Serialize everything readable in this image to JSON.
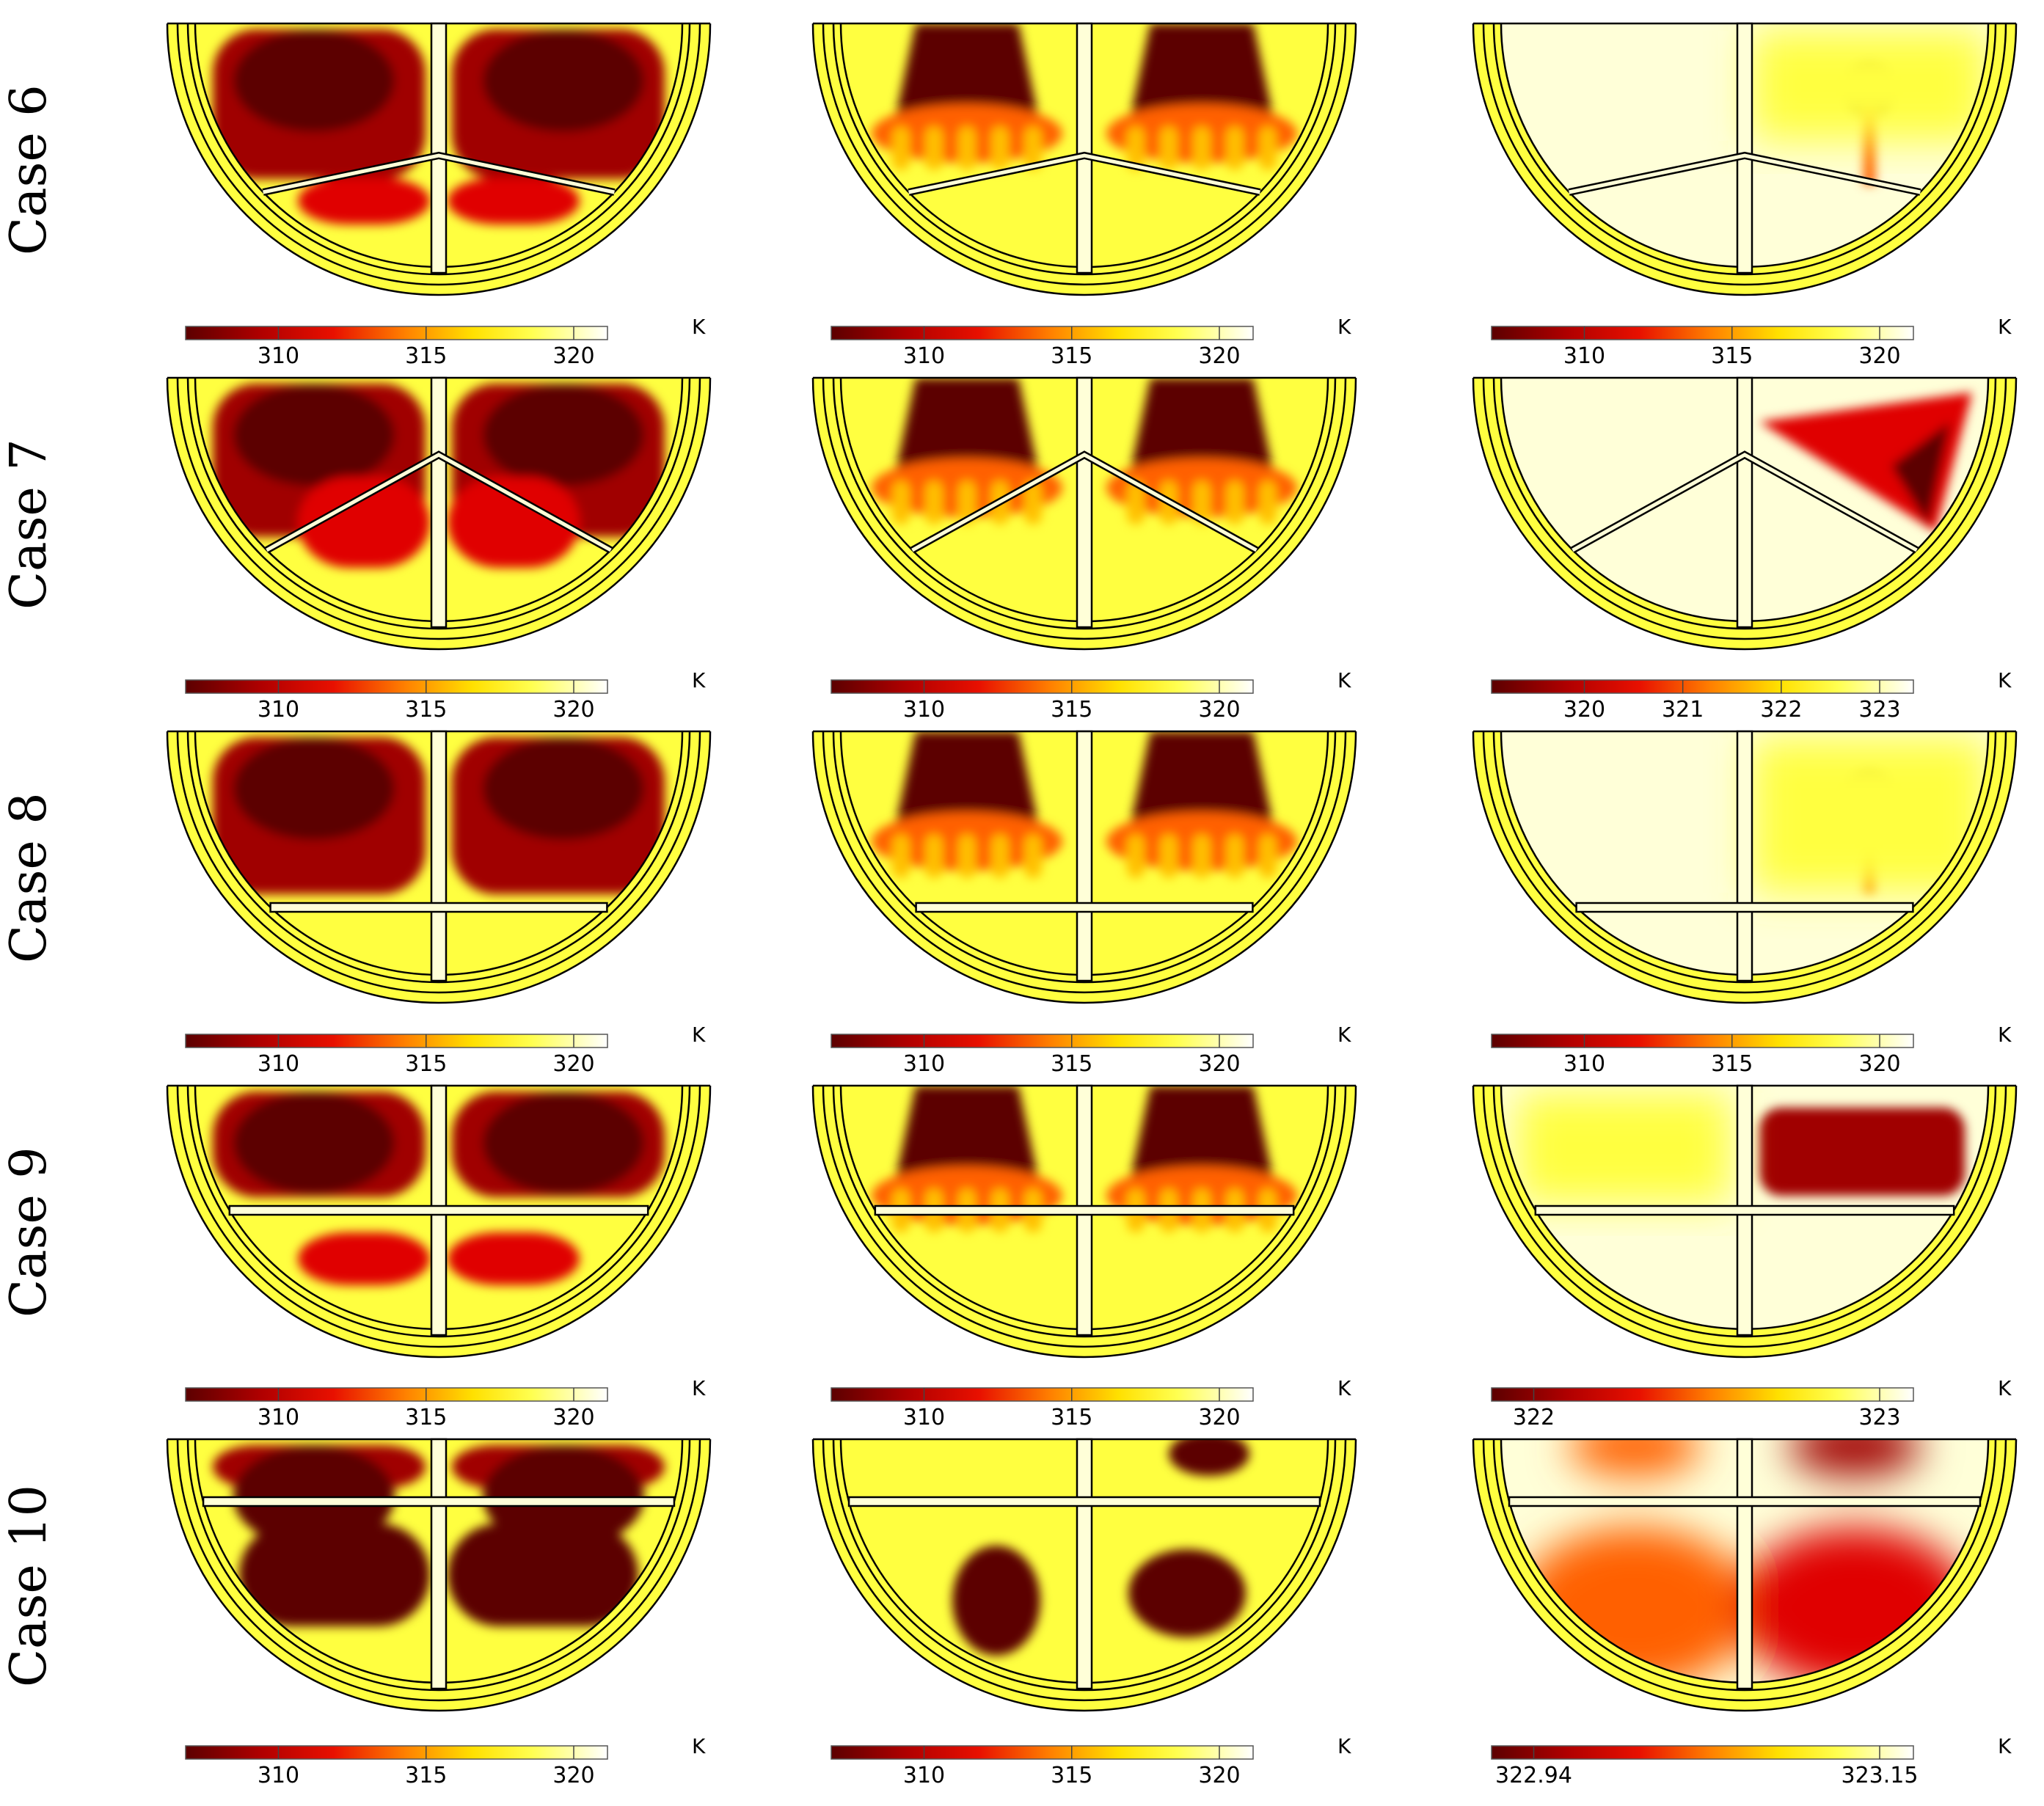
{
  "colormap": [
    "#5c0000",
    "#a00000",
    "#e00000",
    "#ff6000",
    "#ffc000",
    "#ffff40",
    "#ffffd8",
    "#ffffff"
  ],
  "unit": "K",
  "rows": [
    {
      "case_label": "Case 6",
      "layout": "narrow-top-divider",
      "panels": [
        {
          "pattern": "cold-full",
          "scale": {
            "ticks": [
              "310",
              "315",
              "320"
            ]
          }
        },
        {
          "pattern": "plume-pair",
          "scale": {
            "ticks": [
              "310",
              "315",
              "320"
            ]
          }
        },
        {
          "pattern": "single-plume",
          "scale": {
            "ticks": [
              "310",
              "315",
              "320"
            ]
          }
        }
      ]
    },
    {
      "case_label": "Case 7",
      "layout": "v-divider",
      "panels": [
        {
          "pattern": "cold-full",
          "scale": {
            "ticks": [
              "310",
              "315",
              "320"
            ]
          }
        },
        {
          "pattern": "plume-pair",
          "scale": {
            "ticks": [
              "310",
              "315",
              "320"
            ]
          }
        },
        {
          "pattern": "right-wedge",
          "scale": {
            "ticks": [
              "320",
              "321",
              "322",
              "323"
            ]
          }
        }
      ]
    },
    {
      "case_label": "Case 8",
      "layout": "low-flat-divider",
      "panels": [
        {
          "pattern": "cold-full",
          "scale": {
            "ticks": [
              "310",
              "315",
              "320"
            ]
          }
        },
        {
          "pattern": "plume-pair",
          "scale": {
            "ticks": [
              "310",
              "315",
              "320"
            ]
          }
        },
        {
          "pattern": "single-plume",
          "scale": {
            "ticks": [
              "310",
              "315",
              "320"
            ]
          }
        }
      ]
    },
    {
      "case_label": "Case 9",
      "layout": "mid-flat-divider",
      "panels": [
        {
          "pattern": "cold-full",
          "scale": {
            "ticks": [
              "310",
              "315",
              "320"
            ]
          }
        },
        {
          "pattern": "plume-pair",
          "scale": {
            "ticks": [
              "310",
              "315",
              "320"
            ]
          }
        },
        {
          "pattern": "right-block",
          "scale": {
            "ticks": [
              "322",
              "323"
            ]
          }
        }
      ]
    },
    {
      "case_label": "Case 10",
      "layout": "high-flat-divider",
      "panels": [
        {
          "pattern": "cold-full",
          "scale": {
            "ticks": [
              "310",
              "315",
              "320"
            ]
          }
        },
        {
          "pattern": "lower-blobs",
          "scale": {
            "ticks": [
              "310",
              "315",
              "320"
            ]
          }
        },
        {
          "pattern": "soft-lower",
          "scale": {
            "ticks": [
              "322.94",
              "323.15"
            ]
          }
        }
      ]
    }
  ]
}
